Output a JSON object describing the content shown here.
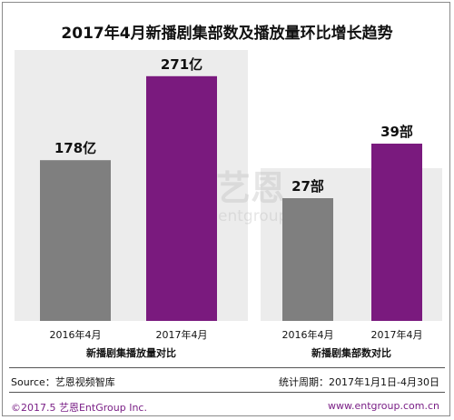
{
  "title": "2017年4月新播剧集部数及播放量环比增长趋势",
  "watermark": {
    "mark": "e",
    "cn": "艺恩",
    "en": "entgroup"
  },
  "colors": {
    "gray": "#7f7f7f",
    "purple": "#7a1a7e",
    "panel_bg": "#ececec",
    "footer": "#7a1f86"
  },
  "chart_data": [
    {
      "type": "bar",
      "xlabel": "新播剧集播放量对比",
      "categories": [
        "2016年4月",
        "2017年4月"
      ],
      "values": [
        178,
        271
      ],
      "data_labels": [
        "178亿",
        "271亿"
      ],
      "ylim": [
        0,
        300
      ],
      "grid": false
    },
    {
      "type": "bar",
      "xlabel": "新播剧集部数对比",
      "categories": [
        "2016年4月",
        "2017年4月"
      ],
      "values": [
        27,
        39
      ],
      "data_labels": [
        "27部",
        "39部"
      ],
      "ylim": [
        0,
        60
      ],
      "grid": false
    }
  ],
  "source": "Source：艺恩视频智库",
  "period": "统计周期：2017年1月1日-4月30日",
  "footer": {
    "copyright": "©2017.5  艺恩EntGroup Inc.",
    "website": "www.entgroup.com.cn"
  }
}
